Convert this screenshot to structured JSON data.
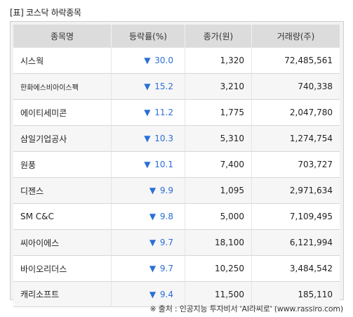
{
  "title": "[표] 코스닥 하락종목",
  "table": {
    "headers": [
      "종목명",
      "등락률(%)",
      "종가(원)",
      "거래량(주)"
    ],
    "down_arrow": "▼",
    "rows": [
      {
        "name": "시스웍",
        "rate": "30.0",
        "close": "1,320",
        "volume": "72,485,561"
      },
      {
        "name": "한화에스비아이스팩",
        "rate": "15.2",
        "close": "3,210",
        "volume": "740,338"
      },
      {
        "name": "에이티세미콘",
        "rate": "11.2",
        "close": "1,775",
        "volume": "2,047,780"
      },
      {
        "name": "삼일기업공사",
        "rate": "10.3",
        "close": "5,310",
        "volume": "1,274,754"
      },
      {
        "name": "원풍",
        "rate": "10.1",
        "close": "7,400",
        "volume": "703,727"
      },
      {
        "name": "디젠스",
        "rate": "9.9",
        "close": "1,095",
        "volume": "2,971,634"
      },
      {
        "name": "SM C&C",
        "rate": "9.8",
        "close": "5,000",
        "volume": "7,109,495"
      },
      {
        "name": "씨아이에스",
        "rate": "9.7",
        "close": "18,100",
        "volume": "6,121,994"
      },
      {
        "name": "바이오리더스",
        "rate": "9.7",
        "close": "10,250",
        "volume": "3,484,542"
      },
      {
        "name": "캐리소프트",
        "rate": "9.4",
        "close": "11,500",
        "volume": "185,110"
      }
    ]
  },
  "source": "※ 출처 : 인공지능 투자비서 'AI라씨로' (www.rassiro.com)",
  "colors": {
    "down": "#2a6fd6",
    "header_bg": "#dcdcdc"
  }
}
